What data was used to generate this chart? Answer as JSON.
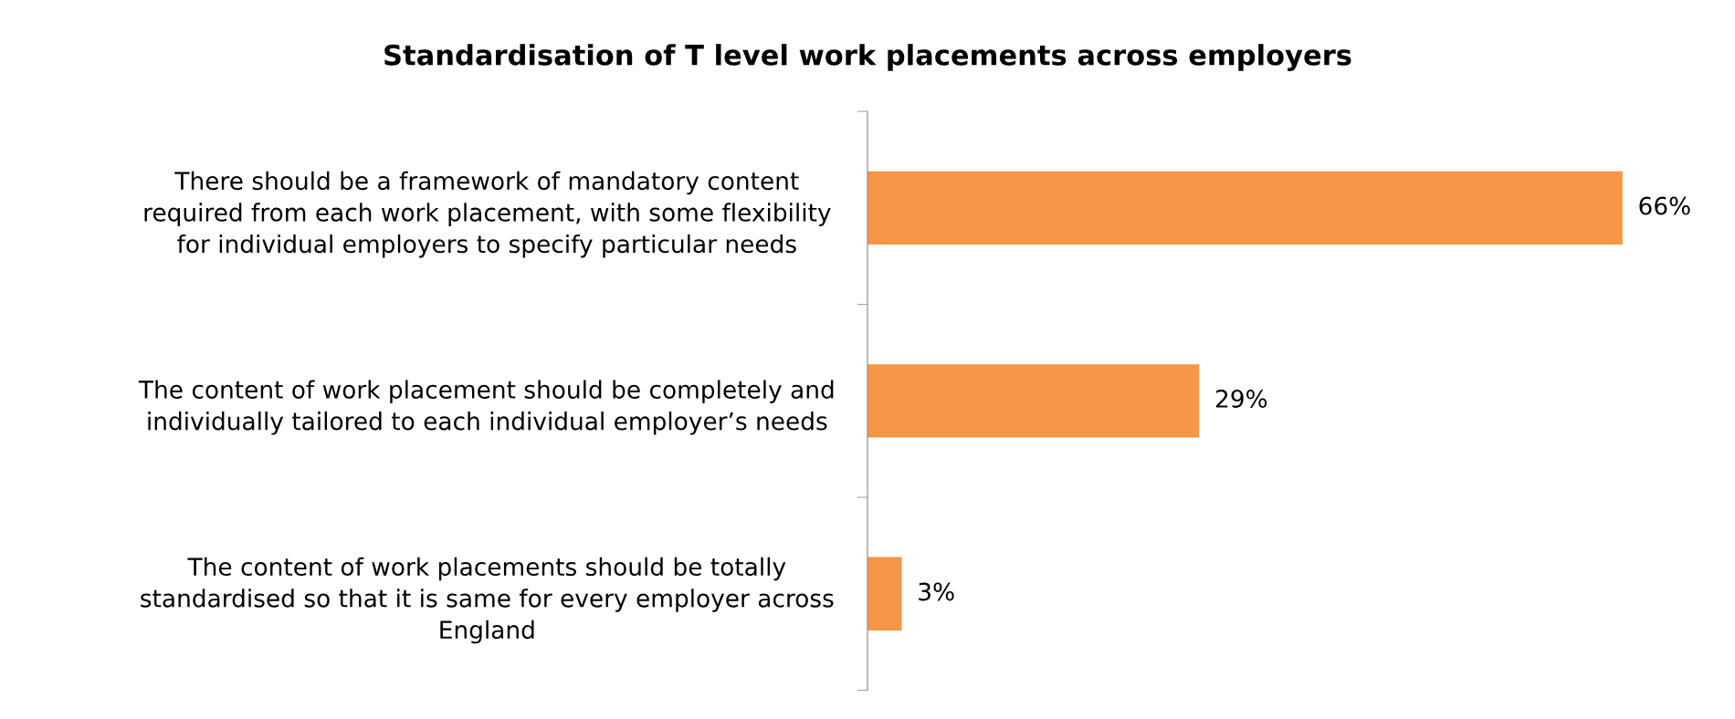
{
  "chart_data": {
    "type": "bar",
    "orientation": "horizontal",
    "title": "Standardisation of T level work placements across employers",
    "categories": [
      "There should be a framework of mandatory content\nrequired from each work placement, with some flexibility\nfor individual employers to specify particular needs",
      "The content of work placement should be completely and\nindividually tailored to each individual employer’s needs",
      "The content of work placements should be totally\nstandardised so that it is same for every employer across\nEngland"
    ],
    "values": [
      66,
      29,
      3
    ],
    "value_labels": [
      "66%",
      "29%",
      "3%"
    ],
    "color": "#f79646",
    "grid": false,
    "legend": false
  }
}
